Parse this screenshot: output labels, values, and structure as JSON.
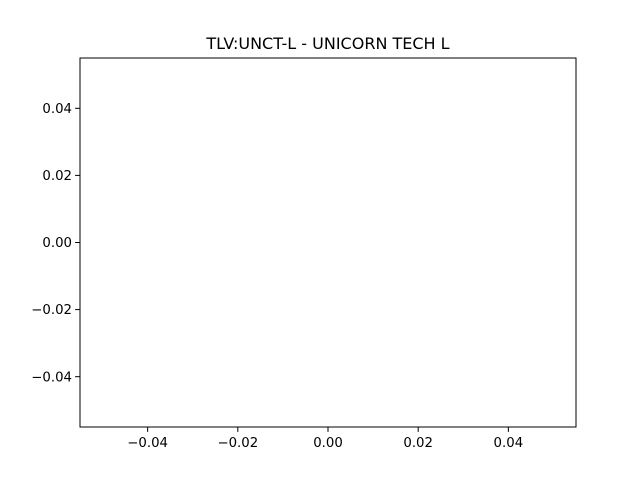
{
  "chart_data": {
    "type": "line",
    "title": "TLV:UNCT-L - UNICORN TECH L",
    "xlabel": "",
    "ylabel": "",
    "series": [
      {
        "x": [],
        "y": []
      }
    ],
    "xlim": [
      -0.055,
      0.055
    ],
    "ylim": [
      -0.055,
      0.055
    ],
    "xticks": [
      -0.04,
      -0.02,
      0.0,
      0.02,
      0.04
    ],
    "yticks": [
      -0.04,
      -0.02,
      0.0,
      0.02,
      0.04
    ],
    "xtick_labels": [
      "−0.04",
      "−0.02",
      "0.00",
      "0.02",
      "0.04"
    ],
    "ytick_labels": [
      "−0.04",
      "−0.02",
      "0.00",
      "0.02",
      "0.04"
    ],
    "grid": false,
    "legend": "none"
  }
}
